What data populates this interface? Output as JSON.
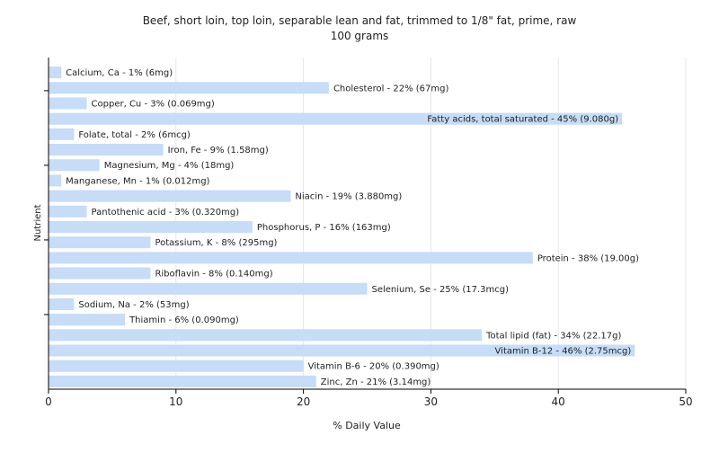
{
  "chart_data": {
    "type": "bar",
    "orientation": "horizontal",
    "title": "Beef, short loin, top loin, separable lean and fat, trimmed to 1/8\" fat, prime, raw",
    "subtitle": "100 grams",
    "xlabel": "% Daily Value",
    "ylabel": "Nutrient",
    "xlim": [
      0,
      50
    ],
    "xticks": [
      0,
      10,
      20,
      30,
      40,
      50
    ],
    "grid": "vertical",
    "categories": [
      "Calcium, Ca",
      "Cholesterol",
      "Copper, Cu",
      "Fatty acids, total saturated",
      "Folate, total",
      "Iron, Fe",
      "Magnesium, Mg",
      "Manganese, Mn",
      "Niacin",
      "Pantothenic acid",
      "Phosphorus, P",
      "Potassium, K",
      "Protein",
      "Riboflavin",
      "Selenium, Se",
      "Sodium, Na",
      "Thiamin",
      "Total lipid (fat)",
      "Vitamin B-12",
      "Vitamin B-6",
      "Zinc, Zn"
    ],
    "values": [
      1,
      22,
      3,
      45,
      2,
      9,
      4,
      1,
      19,
      3,
      16,
      8,
      38,
      8,
      25,
      2,
      6,
      34,
      46,
      20,
      21
    ],
    "labels": [
      "Calcium, Ca - 1% (6mg)",
      "Cholesterol - 22% (67mg)",
      "Copper, Cu - 3% (0.069mg)",
      "Fatty acids, total saturated - 45% (9.080g)",
      "Folate, total - 2% (6mcg)",
      "Iron, Fe - 9% (1.58mg)",
      "Magnesium, Mg - 4% (18mg)",
      "Manganese, Mn - 1% (0.012mg)",
      "Niacin - 19% (3.880mg)",
      "Pantothenic acid - 3% (0.320mg)",
      "Phosphorus, P - 16% (163mg)",
      "Potassium, K - 8% (295mg)",
      "Protein - 38% (19.00g)",
      "Riboflavin - 8% (0.140mg)",
      "Selenium, Se - 25% (17.3mcg)",
      "Sodium, Na - 2% (53mg)",
      "Thiamin - 6% (0.090mg)",
      "Total lipid (fat) - 34% (22.17g)",
      "Vitamin B-12 - 46% (2.75mcg)",
      "Vitamin B-6 - 20% (0.390mg)",
      "Zinc, Zn - 21% (3.14mg)"
    ],
    "colors": {
      "bar": "#c6dcf7",
      "grid": "#e6e6e6",
      "axis": "#000000",
      "text": "#222222"
    }
  }
}
